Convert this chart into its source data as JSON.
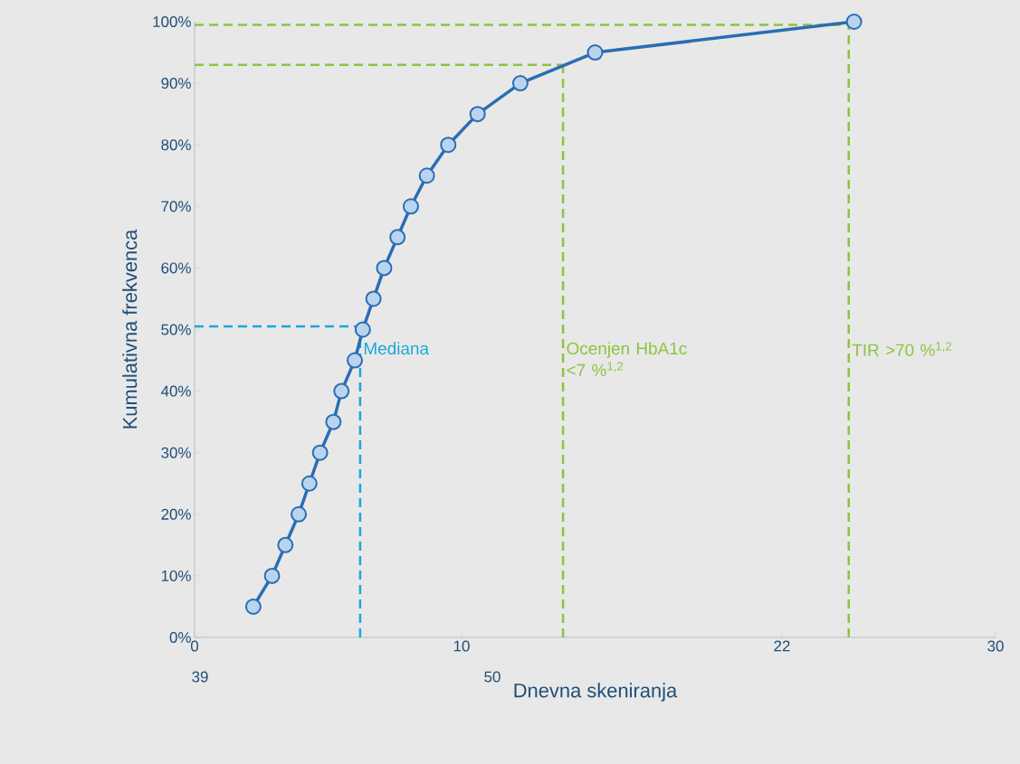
{
  "chart_data": {
    "type": "line",
    "xlabel": "Dnevna skeniranja",
    "ylabel": "Kumulativna frekvenca",
    "x": [
      2.2,
      2.9,
      3.4,
      3.9,
      4.3,
      4.7,
      5.2,
      5.5,
      6.0,
      6.3,
      6.7,
      7.1,
      7.6,
      8.1,
      8.7,
      9.5,
      10.6,
      12.2,
      15.0,
      24.7
    ],
    "series": [
      {
        "color": "#2a6db5",
        "values": [
          5,
          10,
          15,
          20,
          25,
          30,
          35,
          40,
          45,
          50,
          55,
          60,
          65,
          70,
          75,
          80,
          85,
          90,
          95,
          100
        ]
      }
    ],
    "marker": "circle",
    "line_style": "solid",
    "legend": false,
    "grid": false,
    "xlim": [
      0,
      30
    ],
    "xticks": [
      0,
      10,
      22,
      30
    ],
    "annotations": [
      "39",
      "50"
    ],
    "ylim": [
      0,
      100
    ],
    "yticks": [
      {
        "value": 0,
        "label": "0%"
      },
      {
        "value": 10,
        "label": "10%"
      },
      {
        "value": 20,
        "label": "20%"
      },
      {
        "value": 30,
        "label": "30%"
      },
      {
        "value": 40,
        "label": "40%"
      },
      {
        "value": 50,
        "label": "50%"
      },
      {
        "value": 60,
        "label": "60%"
      },
      {
        "value": 70,
        "label": "70%"
      },
      {
        "value": 80,
        "label": "80%"
      },
      {
        "value": 90,
        "label": "90%"
      },
      {
        "value": 100,
        "label": "100%"
      }
    ],
    "ref_lines": [
      {
        "axis": "x",
        "value": 6.2,
        "label": "Mediana",
        "color": "#1aa7d9",
        "line_style": "dashed"
      },
      {
        "axis": "y",
        "value": 50.5,
        "color": "#1aa7d9",
        "line_style": "dashed"
      },
      {
        "axis": "x",
        "value": 13.8,
        "label": "Ocenjen HbA1c <7 %$^{1,2}$",
        "color": "#8cc43f",
        "line_style": "dashed"
      },
      {
        "axis": "y",
        "value": 93,
        "color": "#8cc43f",
        "line_style": "dashed"
      },
      {
        "axis": "x",
        "value": 24.5,
        "label": "TIR >70 %$^{1,2}$",
        "color": "#8cc43f",
        "line_style": "dashed"
      },
      {
        "axis": "y",
        "value": 99.5,
        "color": "#8cc43f",
        "line_style": "dashed"
      }
    ]
  }
}
